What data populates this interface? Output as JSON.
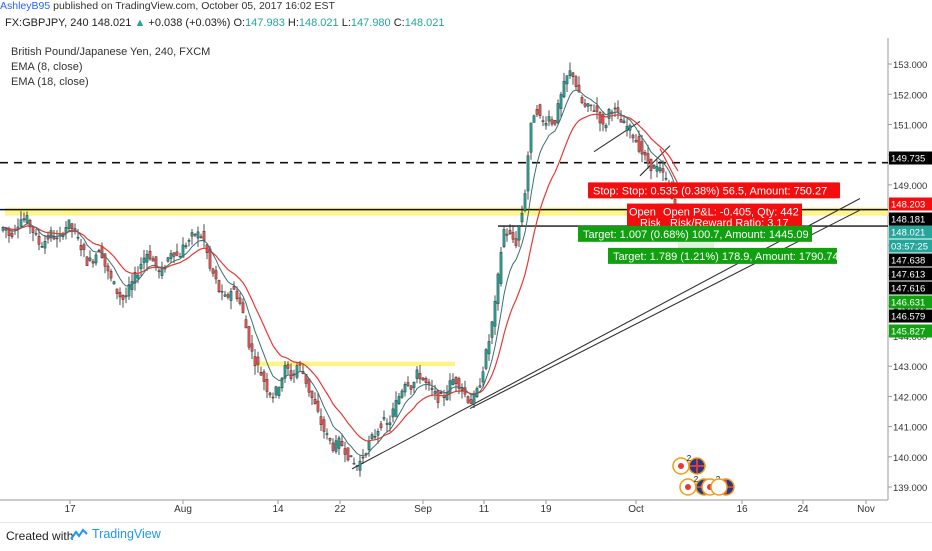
{
  "header": {
    "author": "AshleyB95",
    "published_text": "published on TradingView.com, October 05, 2017 16:02 EST"
  },
  "ohlc": {
    "symbol": "FX:GBPJPY, 240",
    "last": "148.021",
    "change": "+0.038 (+0.03%)",
    "open_label": "O:",
    "open": "147.983",
    "high_label": "H:",
    "high": "148.021",
    "low_label": "L:",
    "low": "147.980",
    "close_label": "C:",
    "close": "148.021"
  },
  "legend": {
    "title": "British Pound/Japanese Yen, 240, FXCM",
    "ema1": "EMA (8, close)",
    "ema2": "EMA (18, close)"
  },
  "colors": {
    "up": "#26a69a",
    "down": "#ef5350",
    "ema8": "#3f6f6f",
    "ema18": "#e53935",
    "stop": "#f20e0e",
    "target": "#10a010",
    "zone": "#fff27a"
  },
  "chart_data": {
    "type": "candlestick",
    "price_axis_ticks": [
      "153.000",
      "152.000",
      "151.000",
      "150.000",
      "149.000",
      "148.000",
      "147.000",
      "146.000",
      "145.000",
      "144.000",
      "143.000",
      "142.000",
      "141.000",
      "140.000",
      "139.000"
    ],
    "time_axis_ticks": [
      "17",
      "Aug",
      "14",
      "22",
      "Sep",
      "11",
      "19",
      "Oct",
      "16",
      "24",
      "Nov"
    ],
    "ylim": [
      138.7,
      153.4
    ],
    "price_labels": [
      {
        "text": "149.735",
        "value": 149.735,
        "color": "#000000"
      },
      {
        "text": "148.203",
        "value": 148.203,
        "color": "#f20e0e"
      },
      {
        "text": "148.181",
        "value": 148.181,
        "color": "#000000"
      },
      {
        "text": "148.021",
        "value": 148.021,
        "color": "#26a69a"
      },
      {
        "text": "03:57:25",
        "value": 147.92,
        "color": "#26a69a"
      },
      {
        "text": "147.638",
        "value": 147.638,
        "color": "#000000"
      },
      {
        "text": "147.613",
        "value": 147.613,
        "color": "#000000"
      },
      {
        "text": "147.616",
        "value": 147.616,
        "color": "#000000"
      },
      {
        "text": "146.631",
        "value": 146.631,
        "color": "#10a010"
      },
      {
        "text": "146.579",
        "value": 146.579,
        "color": "#000000"
      },
      {
        "text": "145.827",
        "value": 145.827,
        "color": "#10a010"
      }
    ],
    "horizontal_levels": {
      "dashed": 149.735,
      "solid_black": 148.181,
      "target_line": 147.638
    },
    "labels": {
      "stop": "Stop: 0.535 (0.38%) 56.5, Amount: 750.27",
      "stop_prefix": "Stop:",
      "open_pl": "Open P&L: -0.405, Qty: 442",
      "rr": "Risk/Reward Ratio: 3.17",
      "open_partial": "Open",
      "risk_partial": "Risk",
      "target1": "Target: 1.007 (0.68%) 100.7, Amount: 1445.09",
      "target2": "Target: 1.789 (1.21%) 178.9, Amount: 1790.74"
    },
    "events": [
      "2",
      "2",
      "2"
    ],
    "series": [
      {
        "name": "EMA (8, close)"
      },
      {
        "name": "EMA (18, close)"
      }
    ],
    "price_path": [
      [
        0,
        147.5
      ],
      [
        4,
        147.6
      ],
      [
        10,
        147.3
      ],
      [
        16,
        147.7
      ],
      [
        22,
        147.9
      ],
      [
        28,
        147.8
      ],
      [
        34,
        147.4
      ],
      [
        40,
        147.0
      ],
      [
        46,
        147.2
      ],
      [
        52,
        147.4
      ],
      [
        58,
        147.1
      ],
      [
        64,
        147.6
      ],
      [
        70,
        147.7
      ],
      [
        76,
        147.3
      ],
      [
        82,
        146.9
      ],
      [
        88,
        146.4
      ],
      [
        94,
        146.6
      ],
      [
        100,
        147.0
      ],
      [
        106,
        146.2
      ],
      [
        112,
        145.8
      ],
      [
        118,
        145.4
      ],
      [
        124,
        145.2
      ],
      [
        130,
        145.6
      ],
      [
        136,
        146.0
      ],
      [
        142,
        146.5
      ],
      [
        148,
        146.8
      ],
      [
        154,
        146.4
      ],
      [
        160,
        146.0
      ],
      [
        166,
        146.4
      ],
      [
        172,
        146.9
      ],
      [
        178,
        146.6
      ],
      [
        184,
        147.0
      ],
      [
        190,
        147.2
      ],
      [
        196,
        147.4
      ],
      [
        202,
        147.3
      ],
      [
        206,
        146.9
      ],
      [
        210,
        146.2
      ],
      [
        214,
        146.0
      ],
      [
        220,
        145.4
      ],
      [
        226,
        145.2
      ],
      [
        232,
        145.6
      ],
      [
        238,
        145.3
      ],
      [
        244,
        144.6
      ],
      [
        250,
        143.6
      ],
      [
        256,
        143.1
      ],
      [
        262,
        142.7
      ],
      [
        268,
        142.2
      ],
      [
        274,
        142.0
      ],
      [
        280,
        142.5
      ],
      [
        286,
        143.0
      ],
      [
        292,
        142.6
      ],
      [
        298,
        143.1
      ],
      [
        304,
        142.7
      ],
      [
        310,
        142.1
      ],
      [
        316,
        141.6
      ],
      [
        322,
        141.0
      ],
      [
        328,
        140.6
      ],
      [
        334,
        140.3
      ],
      [
        340,
        140.5
      ],
      [
        346,
        140.2
      ],
      [
        352,
        139.8
      ],
      [
        358,
        139.7
      ],
      [
        364,
        140.1
      ],
      [
        370,
        140.5
      ],
      [
        376,
        140.8
      ],
      [
        382,
        141.2
      ],
      [
        388,
        141.0
      ],
      [
        394,
        141.6
      ],
      [
        400,
        142.1
      ],
      [
        406,
        142.6
      ],
      [
        412,
        142.3
      ],
      [
        418,
        142.8
      ],
      [
        424,
        142.5
      ],
      [
        430,
        142.2
      ],
      [
        436,
        142.0
      ],
      [
        442,
        141.9
      ],
      [
        448,
        142.3
      ],
      [
        454,
        142.6
      ],
      [
        460,
        142.4
      ],
      [
        466,
        142.0
      ],
      [
        472,
        141.8
      ],
      [
        478,
        142.2
      ],
      [
        484,
        143.1
      ],
      [
        490,
        144.0
      ],
      [
        496,
        145.2
      ],
      [
        500,
        146.6
      ],
      [
        504,
        147.5
      ],
      [
        510,
        147.3
      ],
      [
        516,
        147.1
      ],
      [
        520,
        147.8
      ],
      [
        524,
        148.4
      ],
      [
        528,
        150.0
      ],
      [
        532,
        151.2
      ],
      [
        536,
        151.6
      ],
      [
        542,
        151.0
      ],
      [
        548,
        151.3
      ],
      [
        554,
        151.0
      ],
      [
        560,
        151.8
      ],
      [
        566,
        152.5
      ],
      [
        572,
        152.8
      ],
      [
        576,
        152.3
      ],
      [
        580,
        151.8
      ],
      [
        586,
        151.5
      ],
      [
        592,
        151.6
      ],
      [
        598,
        151.4
      ],
      [
        604,
        150.8
      ],
      [
        610,
        151.6
      ],
      [
        616,
        151.4
      ],
      [
        622,
        151.0
      ],
      [
        628,
        150.9
      ],
      [
        634,
        150.6
      ],
      [
        640,
        150.2
      ],
      [
        646,
        149.8
      ],
      [
        652,
        149.6
      ],
      [
        658,
        149.5
      ],
      [
        664,
        149.3
      ],
      [
        670,
        148.8
      ],
      [
        674,
        148.3
      ],
      [
        678,
        148.0
      ]
    ]
  },
  "footer": {
    "created_with": "Created with",
    "brand": "TradingView"
  }
}
